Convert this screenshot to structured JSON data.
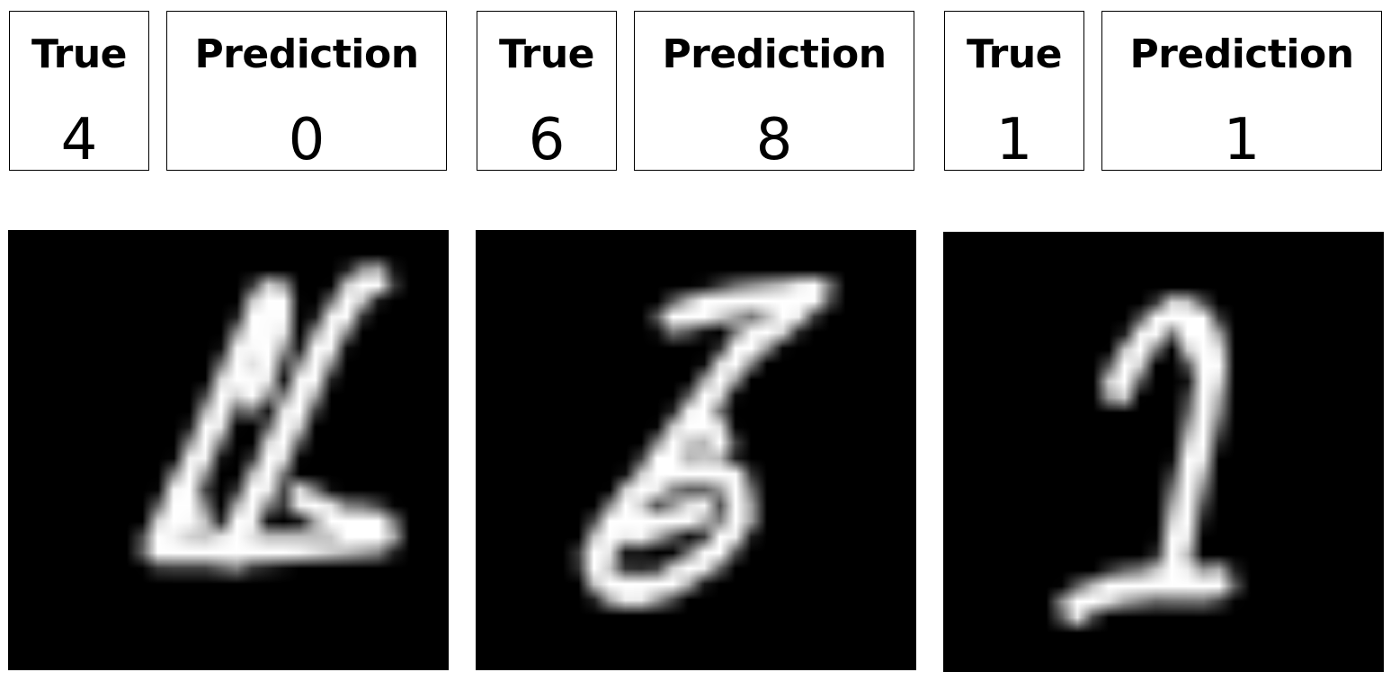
{
  "panels": [
    {
      "true_header": "True",
      "prediction_header": "Prediction",
      "true_label": "4",
      "prediction_label": "0",
      "image_icon": "handwritten-digit-4",
      "strokes": [
        [
          [
            9.5,
            20.2
          ],
          [
            15.0,
            20.3
          ],
          [
            21.0,
            19.9
          ],
          [
            23.8,
            19.5
          ]
        ],
        [
          [
            9.7,
            19.7
          ],
          [
            11.6,
            15.5
          ],
          [
            13.6,
            10.8
          ],
          [
            15.6,
            6.2
          ],
          [
            16.4,
            4.2
          ]
        ],
        [
          [
            14.0,
            20.5
          ],
          [
            16.6,
            15.0
          ],
          [
            18.6,
            10.5
          ],
          [
            20.6,
            6.2
          ],
          [
            22.3,
            3.5
          ],
          [
            23.4,
            3.2
          ]
        ],
        [
          [
            17.1,
            4.1
          ],
          [
            17.0,
            6.5
          ],
          [
            15.6,
            10.5
          ]
        ],
        [
          [
            18.5,
            17.0
          ],
          [
            20.5,
            18.1
          ],
          [
            23.5,
            18.6
          ]
        ],
        [
          [
            11.2,
            16.8
          ],
          [
            11.9,
            18.4
          ]
        ]
      ]
    },
    {
      "true_header": "True",
      "prediction_header": "Prediction",
      "true_label": "6",
      "prediction_label": "8",
      "image_icon": "handwritten-digit-6",
      "strokes": [
        [
          [
            12.5,
            5.6
          ],
          [
            14.5,
            5.0
          ],
          [
            17.0,
            4.5
          ],
          [
            19.5,
            4.1
          ],
          [
            21.5,
            3.9
          ]
        ],
        [
          [
            21.5,
            3.9
          ],
          [
            20.3,
            5.0
          ],
          [
            18.8,
            6.2
          ],
          [
            17.3,
            7.2
          ]
        ],
        [
          [
            17.3,
            7.2
          ],
          [
            15.5,
            9.5
          ],
          [
            13.5,
            12.2
          ],
          [
            11.2,
            15.6
          ],
          [
            8.8,
            18.5
          ],
          [
            7.6,
            21.0
          ],
          [
            8.2,
            22.5
          ],
          [
            10.0,
            23.0
          ],
          [
            12.5,
            22.3
          ],
          [
            15.2,
            20.5
          ],
          [
            16.8,
            18.2
          ],
          [
            16.4,
            15.8
          ],
          [
            14.5,
            15.2
          ],
          [
            12.0,
            15.6
          ],
          [
            10.0,
            16.8
          ],
          [
            9.2,
            18.5
          ],
          [
            10.2,
            19.2
          ],
          [
            12.5,
            18.4
          ],
          [
            14.2,
            17.8
          ]
        ],
        [
          [
            14.6,
            12.0
          ],
          [
            15.4,
            13.6
          ]
        ]
      ]
    },
    {
      "true_header": "True",
      "prediction_header": "Prediction",
      "true_label": "1",
      "prediction_label": "1",
      "image_icon": "handwritten-digit-1",
      "strokes": [
        [
          [
            11.0,
            10.0
          ],
          [
            12.0,
            8.0
          ],
          [
            13.4,
            6.0
          ],
          [
            14.8,
            5.0
          ],
          [
            16.0,
            5.3
          ],
          [
            16.8,
            6.8
          ],
          [
            17.0,
            8.5
          ]
        ],
        [
          [
            17.0,
            8.5
          ],
          [
            16.7,
            11.0
          ],
          [
            16.0,
            14.2
          ],
          [
            15.3,
            17.5
          ],
          [
            14.8,
            20.3
          ],
          [
            14.6,
            22.2
          ]
        ],
        [
          [
            14.6,
            22.2
          ],
          [
            12.5,
            22.5
          ],
          [
            10.5,
            22.8
          ],
          [
            9.2,
            23.3
          ],
          [
            8.3,
            23.9
          ]
        ],
        [
          [
            14.6,
            22.0
          ],
          [
            16.0,
            22.5
          ],
          [
            17.5,
            22.3
          ]
        ],
        [
          [
            16.4,
            8.0
          ],
          [
            15.8,
            6.4
          ]
        ]
      ]
    }
  ]
}
